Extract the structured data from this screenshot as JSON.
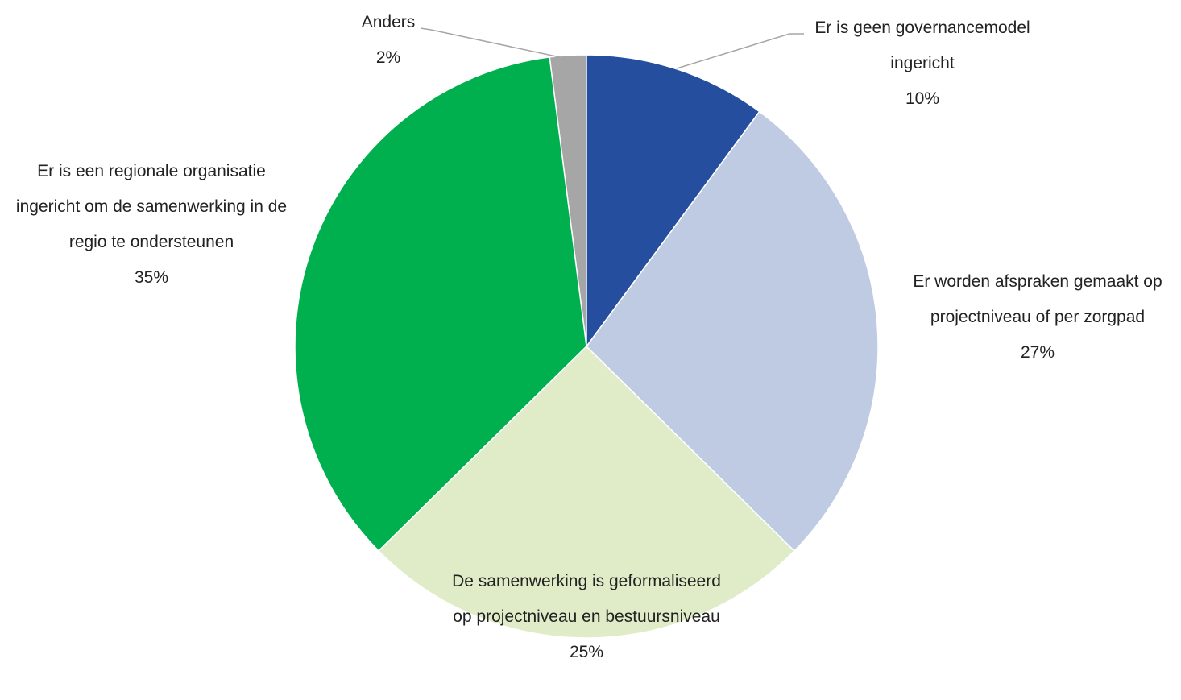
{
  "chart_data": {
    "type": "pie",
    "categories": [
      "Er is geen governancemodel ingericht",
      "Er worden afspraken gemaakt op projectniveau of per zorgpad",
      "De samenwerking is geformaliseerd op projectniveau en bestuursniveau",
      "Er is een regionale organisatie ingericht om de samenwerking in de regio te ondersteunen",
      "Anders"
    ],
    "values": [
      10,
      27,
      25,
      35,
      2
    ],
    "value_labels": [
      "10%",
      "27%",
      "25%",
      "35%",
      "2%"
    ],
    "colors": [
      "#254e9f",
      "#bfcbe3",
      "#e0ecc8",
      "#00b04f",
      "#a6a6a6"
    ]
  }
}
